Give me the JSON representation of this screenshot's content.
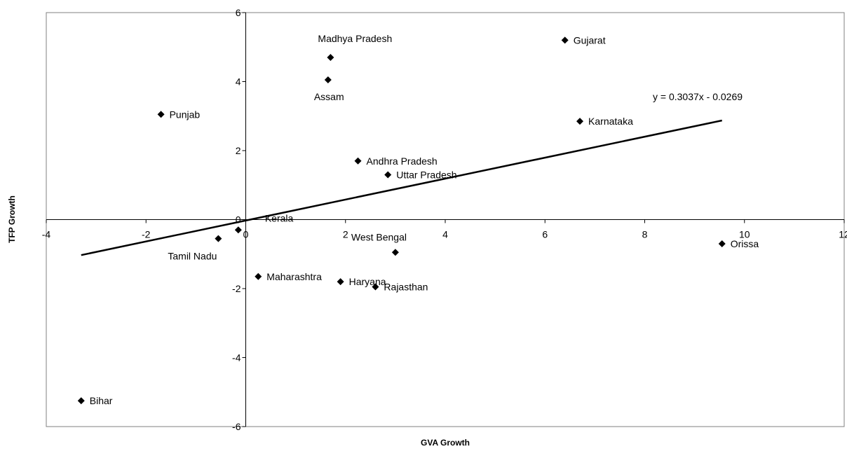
{
  "chart_data": {
    "type": "scatter",
    "xlabel": "GVA Growth",
    "ylabel": "TFP Growth",
    "xlim": [
      -4,
      12
    ],
    "ylim": [
      -6,
      6
    ],
    "x_ticks": [
      -4,
      -2,
      0,
      2,
      4,
      6,
      8,
      10,
      12
    ],
    "y_ticks": [
      -6,
      -4,
      -2,
      0,
      2,
      4,
      6
    ],
    "grid": false,
    "legend": "none",
    "points": [
      {
        "name": "Madhya Pradesh",
        "x": 1.7,
        "y": 4.7
      },
      {
        "name": "Gujarat",
        "x": 6.4,
        "y": 5.2
      },
      {
        "name": "Assam",
        "x": 1.65,
        "y": 4.05
      },
      {
        "name": "Punjab",
        "x": -1.7,
        "y": 3.05
      },
      {
        "name": "Karnataka",
        "x": 6.7,
        "y": 2.85
      },
      {
        "name": "Andhra Pradesh",
        "x": 2.25,
        "y": 1.7
      },
      {
        "name": "Uttar Pradesh",
        "x": 2.85,
        "y": 1.3
      },
      {
        "name": "Kerala",
        "x": -0.15,
        "y": -0.3
      },
      {
        "name": "Tamil Nadu",
        "x": -0.55,
        "y": -0.55
      },
      {
        "name": "West Bengal",
        "x": 3.0,
        "y": -0.95
      },
      {
        "name": "Orissa",
        "x": 9.55,
        "y": -0.7
      },
      {
        "name": "Maharashtra",
        "x": 0.25,
        "y": -1.65
      },
      {
        "name": "Haryana",
        "x": 1.9,
        "y": -1.8
      },
      {
        "name": "Rajasthan",
        "x": 2.6,
        "y": -1.95
      },
      {
        "name": "Bihar",
        "x": -3.3,
        "y": -5.25
      }
    ],
    "trendline": {
      "slope": 0.3037,
      "intercept": -0.0269,
      "x_range": [
        -3.3,
        9.55
      ],
      "equation": "y = 0.3037x - 0.0269"
    }
  },
  "colors": {
    "marker": "#000000",
    "line": "#000000",
    "border": "#808080"
  }
}
